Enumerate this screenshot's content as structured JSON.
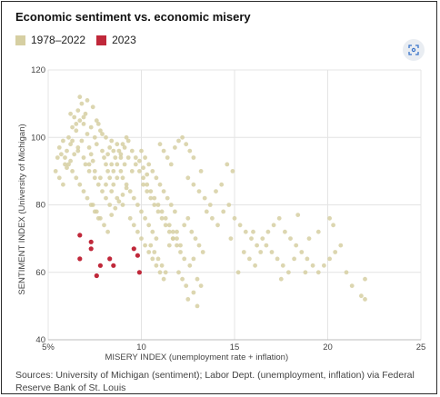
{
  "chart_data": {
    "type": "scatter",
    "title": "Economic sentiment vs. economic misery",
    "xlabel": "MISERY INDEX (unemployment rate + inflation)",
    "ylabel": "SENTIMENT INDEX (University of Michigan)",
    "xlim": [
      5,
      25
    ],
    "ylim": [
      40,
      120
    ],
    "x_ticks": [
      "5%",
      "10",
      "15",
      "20",
      "25"
    ],
    "y_ticks": [
      "40",
      "60",
      "80",
      "100",
      "120"
    ],
    "grid": true,
    "legend_position": "top-left",
    "series": [
      {
        "name": "1978–2022",
        "color": "#d6cfa2",
        "points": [
          [
            5.4,
            90
          ],
          [
            5.5,
            94
          ],
          [
            5.6,
            97
          ],
          [
            5.7,
            95
          ],
          [
            5.8,
            99
          ],
          [
            5.9,
            92
          ],
          [
            6.0,
            96
          ],
          [
            6.1,
            100
          ],
          [
            6.2,
            98
          ],
          [
            6.3,
            103
          ],
          [
            6.4,
            106
          ],
          [
            6.5,
            102
          ],
          [
            6.6,
            108
          ],
          [
            6.7,
            105
          ],
          [
            6.8,
            110
          ],
          [
            6.9,
            104
          ],
          [
            7.0,
            107
          ],
          [
            7.1,
            101
          ],
          [
            7.2,
            97
          ],
          [
            7.3,
            95
          ],
          [
            5.6,
            88
          ],
          [
            5.8,
            86
          ],
          [
            6.0,
            91
          ],
          [
            6.2,
            93
          ],
          [
            6.4,
            95
          ],
          [
            6.6,
            97
          ],
          [
            6.8,
            99
          ],
          [
            7.0,
            92
          ],
          [
            7.2,
            90
          ],
          [
            7.4,
            93
          ],
          [
            7.5,
            100
          ],
          [
            7.6,
            98
          ],
          [
            7.7,
            104
          ],
          [
            7.8,
            102
          ],
          [
            7.9,
            96
          ],
          [
            8.0,
            94
          ],
          [
            8.1,
            92
          ],
          [
            8.2,
            95
          ],
          [
            8.3,
            97
          ],
          [
            8.4,
            99
          ],
          [
            6.7,
            112
          ],
          [
            7.1,
            111
          ],
          [
            7.4,
            109
          ],
          [
            6.2,
            107
          ],
          [
            6.5,
            104
          ],
          [
            6.9,
            106
          ],
          [
            7.3,
            103
          ],
          [
            7.6,
            105
          ],
          [
            7.9,
            101
          ],
          [
            8.1,
            100
          ],
          [
            7.5,
            88
          ],
          [
            7.7,
            86
          ],
          [
            7.9,
            84
          ],
          [
            8.1,
            82
          ],
          [
            8.3,
            80
          ],
          [
            8.5,
            86
          ],
          [
            8.7,
            88
          ],
          [
            8.9,
            90
          ],
          [
            9.1,
            92
          ],
          [
            9.3,
            94
          ],
          [
            7.4,
            80
          ],
          [
            7.6,
            78
          ],
          [
            7.8,
            76
          ],
          [
            8.0,
            74
          ],
          [
            8.2,
            72
          ],
          [
            8.4,
            77
          ],
          [
            8.6,
            79
          ],
          [
            8.8,
            81
          ],
          [
            9.0,
            83
          ],
          [
            9.2,
            85
          ],
          [
            8.5,
            96
          ],
          [
            8.7,
            98
          ],
          [
            8.9,
            95
          ],
          [
            9.1,
            97
          ],
          [
            9.3,
            99
          ],
          [
            9.5,
            96
          ],
          [
            9.7,
            94
          ],
          [
            9.9,
            93
          ],
          [
            10.1,
            91
          ],
          [
            10.3,
            89
          ],
          [
            9.0,
            88
          ],
          [
            9.2,
            86
          ],
          [
            9.4,
            84
          ],
          [
            9.6,
            82
          ],
          [
            9.8,
            80
          ],
          [
            10.0,
            78
          ],
          [
            10.2,
            76
          ],
          [
            10.4,
            74
          ],
          [
            10.6,
            72
          ],
          [
            10.8,
            70
          ],
          [
            9.5,
            90
          ],
          [
            9.7,
            92
          ],
          [
            9.9,
            90
          ],
          [
            10.1,
            88
          ],
          [
            10.3,
            86
          ],
          [
            10.5,
            84
          ],
          [
            10.7,
            82
          ],
          [
            10.9,
            80
          ],
          [
            11.1,
            78
          ],
          [
            11.3,
            76
          ],
          [
            10.0,
            96
          ],
          [
            10.2,
            94
          ],
          [
            10.4,
            92
          ],
          [
            10.6,
            90
          ],
          [
            10.8,
            88
          ],
          [
            11.0,
            86
          ],
          [
            11.2,
            84
          ],
          [
            11.4,
            82
          ],
          [
            11.6,
            80
          ],
          [
            11.8,
            78
          ],
          [
            11.0,
            98
          ],
          [
            11.2,
            96
          ],
          [
            11.4,
            94
          ],
          [
            11.6,
            92
          ],
          [
            11.8,
            97
          ],
          [
            12.0,
            99
          ],
          [
            12.2,
            100
          ],
          [
            12.4,
            98
          ],
          [
            12.6,
            96
          ],
          [
            12.8,
            94
          ],
          [
            10.5,
            68
          ],
          [
            10.7,
            66
          ],
          [
            10.9,
            64
          ],
          [
            11.1,
            62
          ],
          [
            11.3,
            60
          ],
          [
            11.5,
            68
          ],
          [
            11.7,
            70
          ],
          [
            11.9,
            72
          ],
          [
            12.1,
            66
          ],
          [
            12.3,
            64
          ],
          [
            11.5,
            74
          ],
          [
            11.7,
            72
          ],
          [
            11.9,
            70
          ],
          [
            12.1,
            68
          ],
          [
            12.3,
            74
          ],
          [
            12.5,
            76
          ],
          [
            12.7,
            72
          ],
          [
            12.9,
            70
          ],
          [
            13.1,
            68
          ],
          [
            13.3,
            66
          ],
          [
            12.0,
            60
          ],
          [
            12.2,
            58
          ],
          [
            12.4,
            56
          ],
          [
            12.6,
            62
          ],
          [
            12.8,
            64
          ],
          [
            13.0,
            58
          ],
          [
            13.2,
            56
          ],
          [
            12.5,
            52
          ],
          [
            12.8,
            54
          ],
          [
            13.0,
            50
          ],
          [
            12.5,
            88
          ],
          [
            12.8,
            86
          ],
          [
            13.1,
            84
          ],
          [
            13.4,
            82
          ],
          [
            13.7,
            80
          ],
          [
            14.0,
            84
          ],
          [
            14.3,
            86
          ],
          [
            14.6,
            92
          ],
          [
            14.9,
            90
          ],
          [
            13.2,
            90
          ],
          [
            13.5,
            78
          ],
          [
            13.8,
            76
          ],
          [
            14.1,
            74
          ],
          [
            14.4,
            78
          ],
          [
            14.7,
            80
          ],
          [
            15.0,
            76
          ],
          [
            15.3,
            74
          ],
          [
            15.6,
            72
          ],
          [
            15.9,
            70
          ],
          [
            16.2,
            68
          ],
          [
            15.5,
            66
          ],
          [
            15.8,
            64
          ],
          [
            16.1,
            62
          ],
          [
            16.4,
            66
          ],
          [
            16.7,
            68
          ],
          [
            17.0,
            66
          ],
          [
            17.3,
            64
          ],
          [
            17.6,
            62
          ],
          [
            17.9,
            60
          ],
          [
            18.2,
            64
          ],
          [
            16.5,
            70
          ],
          [
            16.8,
            72
          ],
          [
            17.1,
            74
          ],
          [
            17.4,
            76
          ],
          [
            17.7,
            72
          ],
          [
            18.0,
            70
          ],
          [
            18.3,
            68
          ],
          [
            18.6,
            66
          ],
          [
            18.9,
            64
          ],
          [
            19.2,
            62
          ],
          [
            19.5,
            60
          ],
          [
            19.8,
            62
          ],
          [
            20.1,
            64
          ],
          [
            20.4,
            66
          ],
          [
            20.7,
            68
          ],
          [
            20.1,
            76
          ],
          [
            20.3,
            74
          ],
          [
            21.0,
            60
          ],
          [
            21.3,
            56
          ],
          [
            21.8,
            53
          ],
          [
            22.0,
            52
          ],
          [
            22.0,
            58
          ],
          [
            18.4,
            77
          ],
          [
            19.0,
            70
          ],
          [
            17.5,
            58
          ],
          [
            18.8,
            60
          ],
          [
            19.5,
            72
          ],
          [
            16.0,
            72
          ],
          [
            15.2,
            60
          ],
          [
            14.8,
            70
          ],
          [
            6.3,
            99
          ],
          [
            6.6,
            96
          ],
          [
            6.9,
            94
          ],
          [
            7.2,
            92
          ],
          [
            7.5,
            90
          ],
          [
            7.8,
            88
          ],
          [
            8.1,
            86
          ],
          [
            8.4,
            84
          ],
          [
            8.7,
            82
          ],
          [
            9.0,
            80
          ],
          [
            8.2,
            90
          ],
          [
            8.4,
            92
          ],
          [
            8.6,
            94
          ],
          [
            8.8,
            96
          ],
          [
            9.0,
            98
          ],
          [
            9.2,
            100
          ],
          [
            8.3,
            88
          ],
          [
            8.5,
            90
          ],
          [
            8.7,
            92
          ],
          [
            8.9,
            94
          ],
          [
            9.4,
            76
          ],
          [
            9.6,
            74
          ],
          [
            9.8,
            72
          ],
          [
            10.0,
            70
          ],
          [
            10.2,
            68
          ],
          [
            10.4,
            66
          ],
          [
            10.6,
            64
          ],
          [
            10.8,
            62
          ],
          [
            11.0,
            60
          ],
          [
            11.2,
            58
          ],
          [
            10.1,
            86
          ],
          [
            10.3,
            84
          ],
          [
            10.5,
            82
          ],
          [
            10.7,
            80
          ],
          [
            10.9,
            78
          ],
          [
            11.1,
            76
          ],
          [
            11.3,
            74
          ],
          [
            11.5,
            72
          ],
          [
            11.7,
            70
          ],
          [
            11.9,
            68
          ],
          [
            5.9,
            94
          ],
          [
            6.1,
            92
          ],
          [
            6.3,
            90
          ],
          [
            6.5,
            88
          ],
          [
            6.7,
            86
          ],
          [
            6.9,
            84
          ],
          [
            7.1,
            82
          ],
          [
            7.3,
            80
          ],
          [
            7.5,
            78
          ],
          [
            7.7,
            76
          ]
        ]
      },
      {
        "name": "2023",
        "color": "#c0283a",
        "points": [
          [
            6.7,
            71
          ],
          [
            6.7,
            64
          ],
          [
            7.3,
            69
          ],
          [
            7.3,
            67
          ],
          [
            7.6,
            59
          ],
          [
            7.8,
            62
          ],
          [
            8.3,
            64
          ],
          [
            8.5,
            62
          ],
          [
            9.6,
            67
          ],
          [
            9.8,
            65
          ],
          [
            9.9,
            60
          ]
        ]
      }
    ]
  },
  "legend": {
    "items": [
      {
        "label": "1978–2022",
        "color": "#d6cfa2"
      },
      {
        "label": "2023",
        "color": "#c0283a"
      }
    ]
  },
  "source": "Sources: University of Michigan (sentiment); Labor Dept. (unemployment, inflation) via Federal Reserve Bank of St. Louis"
}
